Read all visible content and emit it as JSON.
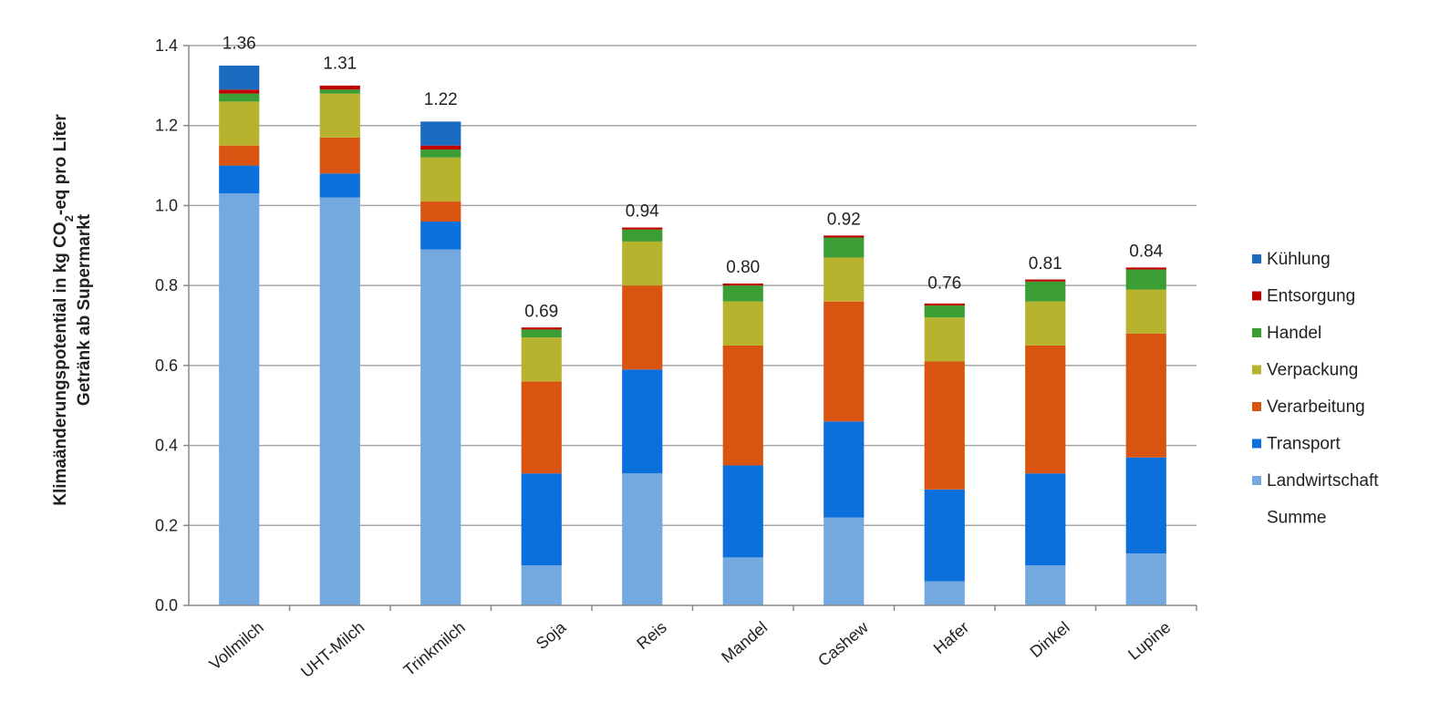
{
  "chart_data": {
    "type": "bar",
    "stacked": true,
    "ylabel_line1_pre": "Klimaänderungspotential in kg CO",
    "ylabel_line1_sub": "2",
    "ylabel_line1_post": "-eq pro Liter",
    "ylabel_line2": "Getränk ab Supermarkt",
    "ylim": [
      0,
      1.4
    ],
    "yticks": [
      "0.0",
      "0.2",
      "0.4",
      "0.6",
      "0.8",
      "1.0",
      "1.2",
      "1.4"
    ],
    "ytick_values": [
      0,
      0.2,
      0.4,
      0.6,
      0.8,
      1.0,
      1.2,
      1.4
    ],
    "grid": true,
    "legend_position": "right",
    "categories": [
      "Vollmilch",
      "UHT-Milch",
      "Trinkmilch",
      "Soja",
      "Reis",
      "Mandel",
      "Cashew",
      "Hafer",
      "Dinkel",
      "Lupine"
    ],
    "totals": [
      "1.36",
      "1.31",
      "1.22",
      "0.69",
      "0.94",
      "0.80",
      "0.92",
      "0.76",
      "0.81",
      "0.84"
    ],
    "total_values": [
      1.36,
      1.31,
      1.22,
      0.69,
      0.94,
      0.8,
      0.92,
      0.76,
      0.81,
      0.84
    ],
    "series": [
      {
        "name": "Landwirtschaft",
        "color": "#74a9e0",
        "values": [
          1.03,
          1.02,
          0.89,
          0.1,
          0.33,
          0.12,
          0.22,
          0.06,
          0.1,
          0.13
        ]
      },
      {
        "name": "Transport",
        "color": "#0b6fdc",
        "values": [
          0.07,
          0.06,
          0.07,
          0.23,
          0.26,
          0.23,
          0.24,
          0.23,
          0.23,
          0.24
        ]
      },
      {
        "name": "Verarbeitung",
        "color": "#d95410",
        "values": [
          0.05,
          0.09,
          0.05,
          0.23,
          0.21,
          0.3,
          0.3,
          0.32,
          0.32,
          0.31
        ]
      },
      {
        "name": "Verpackung",
        "color": "#b8b32e",
        "values": [
          0.11,
          0.11,
          0.11,
          0.11,
          0.11,
          0.11,
          0.11,
          0.11,
          0.11,
          0.11
        ]
      },
      {
        "name": "Handel",
        "color": "#3b9e34",
        "values": [
          0.02,
          0.01,
          0.02,
          0.02,
          0.03,
          0.04,
          0.05,
          0.03,
          0.05,
          0.05
        ]
      },
      {
        "name": "Entsorgung",
        "color": "#c00000",
        "values": [
          0.01,
          0.01,
          0.01,
          0.005,
          0.005,
          0.005,
          0.005,
          0.005,
          0.005,
          0.005
        ]
      },
      {
        "name": "Kühlung",
        "color": "#1b6cc0",
        "values": [
          0.06,
          0.0,
          0.06,
          0.0,
          0.0,
          0.0,
          0.0,
          0.0,
          0.0,
          0.0
        ]
      }
    ],
    "legend_order": [
      "Kühlung",
      "Entsorgung",
      "Handel",
      "Verpackung",
      "Verarbeitung",
      "Transport",
      "Landwirtschaft"
    ],
    "legend_extra": "Summe"
  }
}
